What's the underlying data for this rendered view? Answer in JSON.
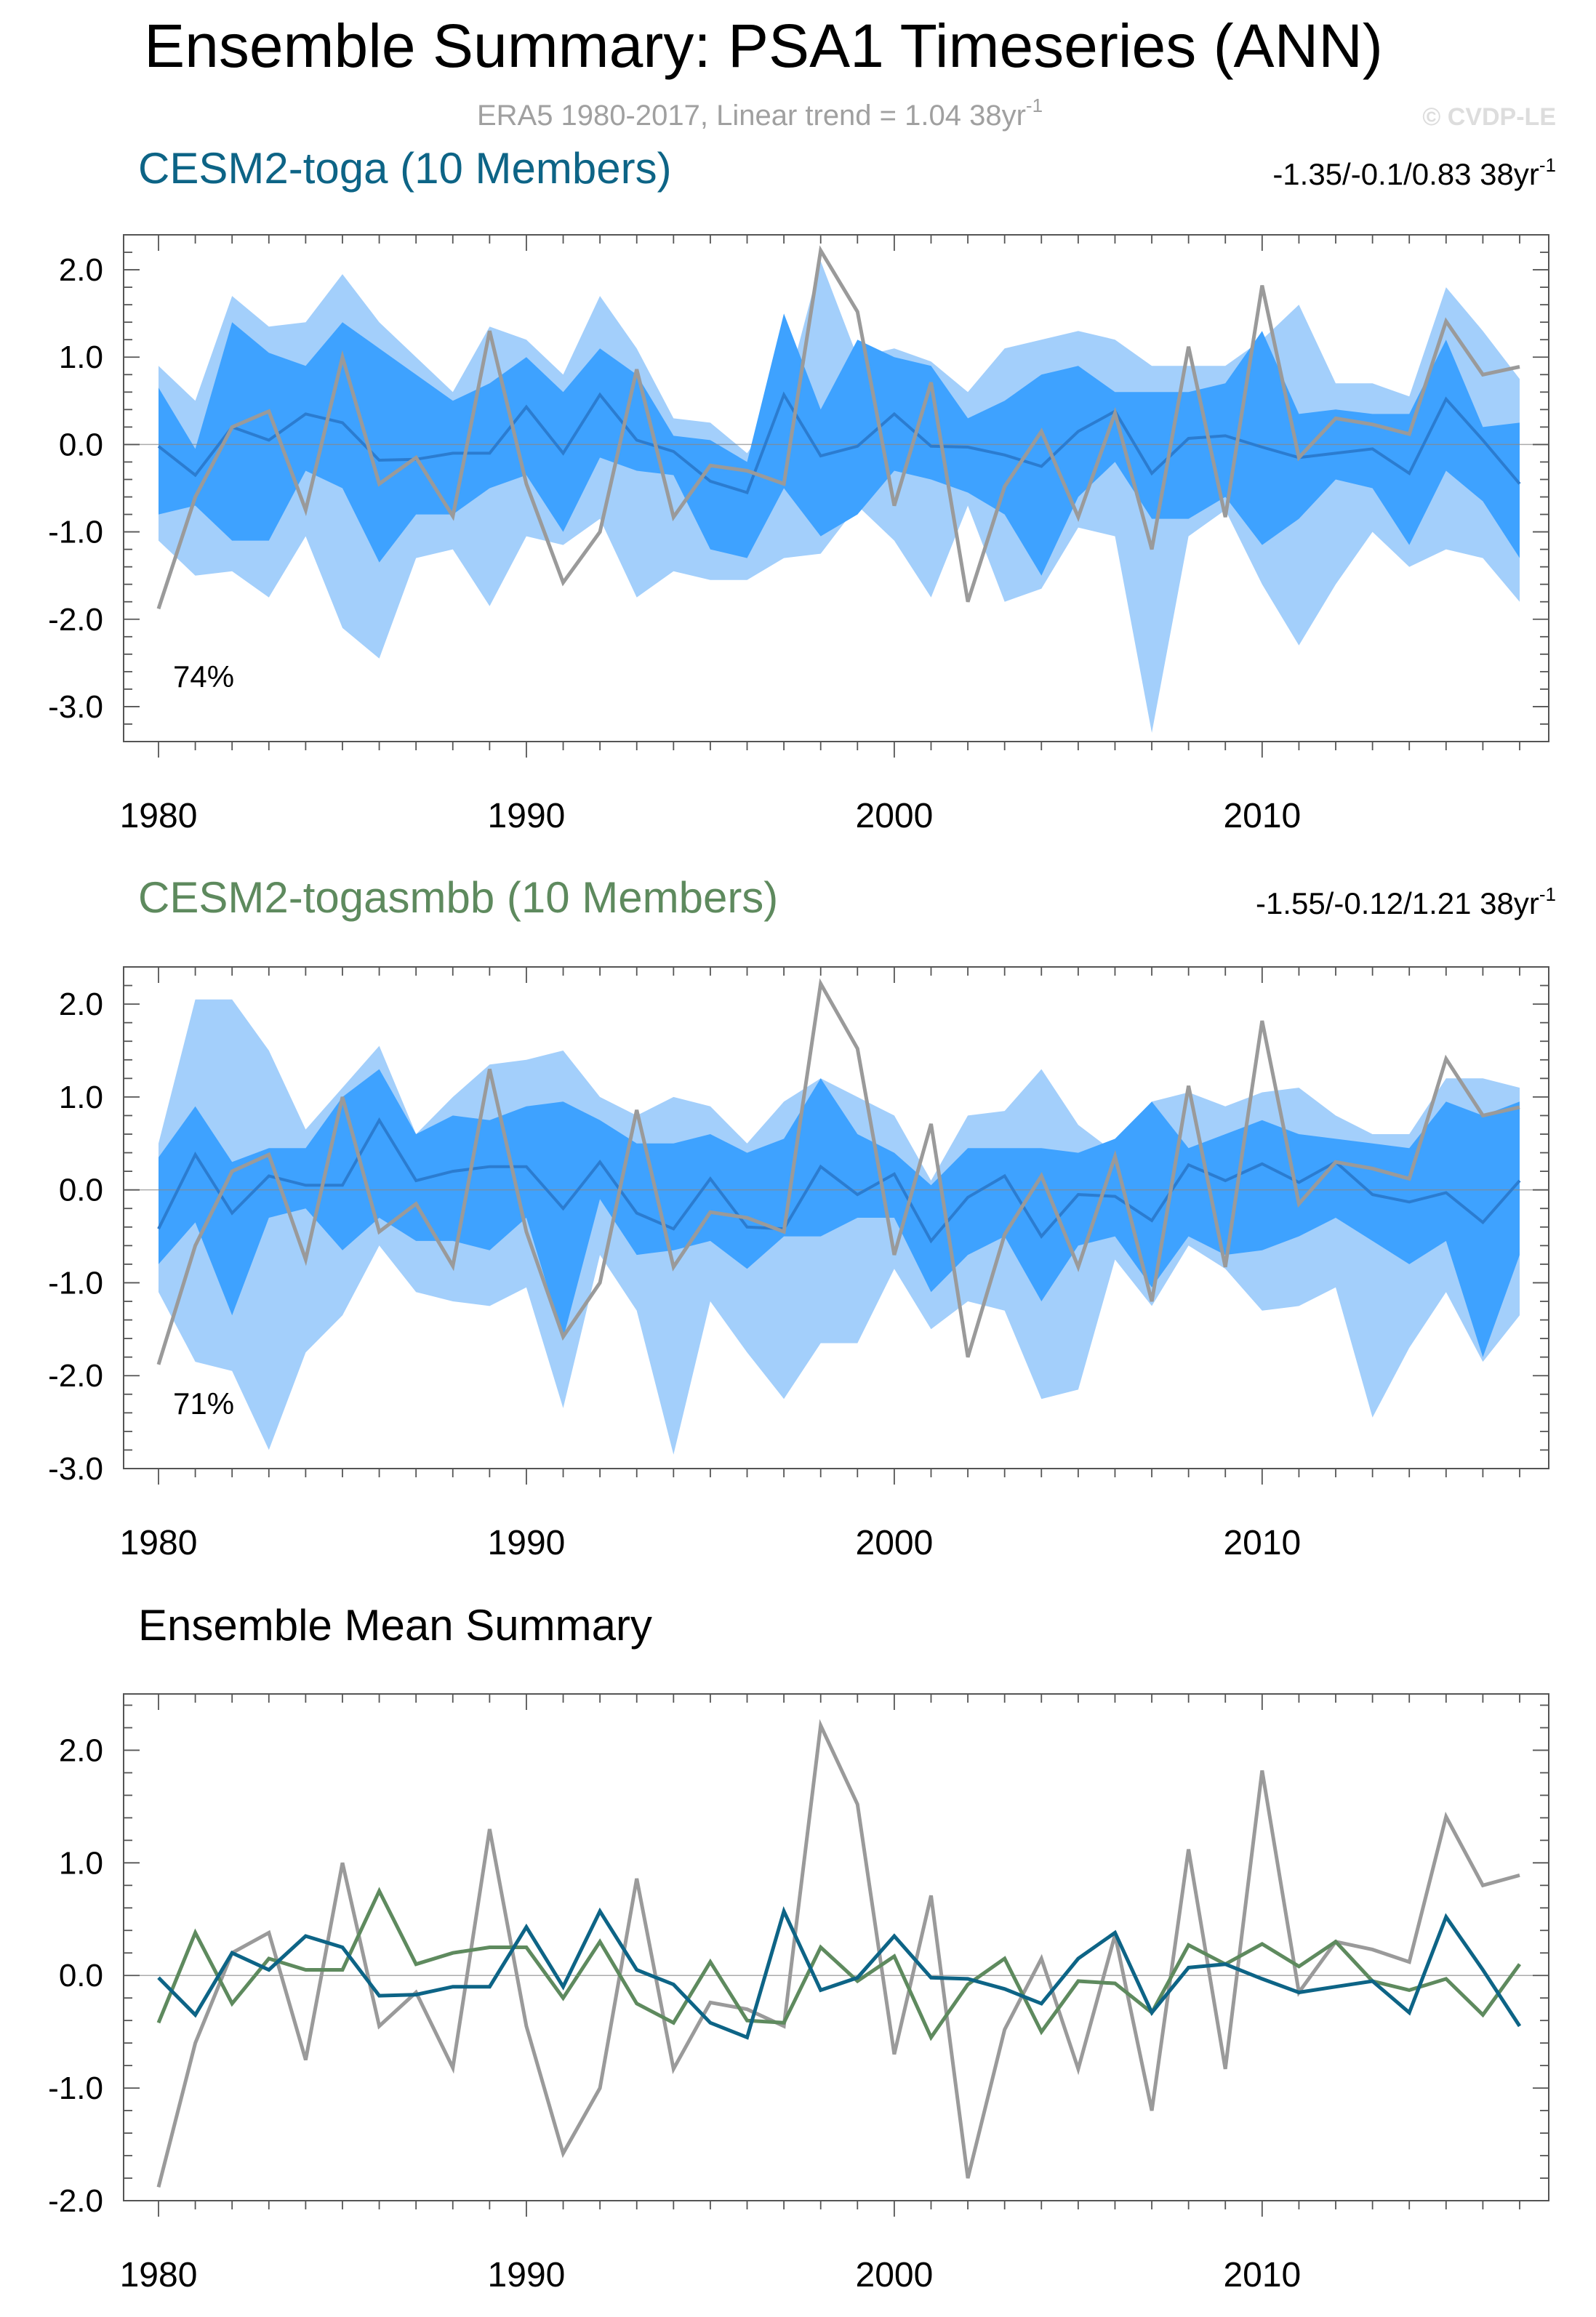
{
  "figure": {
    "title": "Ensemble Summary: PSA1 Timeseries (ANN)",
    "subtitle_main": "ERA5 1980-2017, Linear trend = 1.04 38yr",
    "subtitle_sup": "-1",
    "watermark": "© CVDP-LE"
  },
  "colors": {
    "band_outer": "#a3cffb",
    "band_inner": "#3ea2ff",
    "mean_blue": "#2b7cd0",
    "obs": "#9a9a9a",
    "toga": "#0d6486",
    "togasmbb": "#5e8a5e",
    "axis": "#555555"
  },
  "chart_data": [
    {
      "type": "area",
      "title": "CESM2-toga (10 Members)",
      "trend_label_main": "-1.35/-0.1/0.83 38yr",
      "trend_label_sup": "-1",
      "percent_label": "74%",
      "xlabel": "",
      "ylabel": "",
      "xlim": [
        1980,
        2017
      ],
      "ylim": [
        -3.4,
        2.4
      ],
      "xticks": [
        1980,
        1990,
        2000,
        2010
      ],
      "yticks": [
        2,
        1,
        0,
        -1,
        -2,
        -3
      ],
      "ytick_labels": [
        "2.0",
        "1.0",
        "0.0",
        "-1.0",
        "-2.0",
        "-3.0"
      ],
      "x": [
        1980,
        1981,
        1982,
        1983,
        1984,
        1985,
        1986,
        1987,
        1988,
        1989,
        1990,
        1991,
        1992,
        1993,
        1994,
        1995,
        1996,
        1997,
        1998,
        1999,
        2000,
        2001,
        2002,
        2003,
        2004,
        2005,
        2006,
        2007,
        2008,
        2009,
        2010,
        2011,
        2012,
        2013,
        2014,
        2015,
        2016,
        2017
      ],
      "outer_upper": [
        0.9,
        0.5,
        1.7,
        1.35,
        1.4,
        1.95,
        1.4,
        1.0,
        0.6,
        1.35,
        1.2,
        0.8,
        1.7,
        1.1,
        0.3,
        0.25,
        -0.1,
        0.5,
        2.1,
        1.0,
        1.1,
        0.95,
        0.6,
        1.1,
        1.2,
        1.3,
        1.2,
        0.9,
        0.9,
        0.9,
        1.2,
        1.6,
        0.7,
        0.7,
        0.55,
        1.8,
        1.3,
        0.75
      ],
      "outer_lower": [
        -1.1,
        -1.5,
        -1.45,
        -1.75,
        -1.05,
        -2.1,
        -2.45,
        -1.3,
        -1.2,
        -1.85,
        -1.05,
        -1.15,
        -0.85,
        -1.75,
        -1.45,
        -1.55,
        -1.55,
        -1.3,
        -1.25,
        -0.7,
        -1.1,
        -1.75,
        -0.7,
        -1.8,
        -1.65,
        -0.95,
        -1.05,
        -3.3,
        -1.05,
        -0.75,
        -1.6,
        -2.3,
        -1.6,
        -1.0,
        -1.4,
        -1.2,
        -1.3,
        -1.8
      ],
      "inner_upper": [
        0.65,
        -0.05,
        1.4,
        1.05,
        0.9,
        1.4,
        1.1,
        0.8,
        0.5,
        0.7,
        1.0,
        0.6,
        1.1,
        0.8,
        0.1,
        0.05,
        -0.2,
        1.5,
        0.4,
        1.2,
        1.0,
        0.9,
        0.3,
        0.5,
        0.8,
        0.9,
        0.6,
        0.6,
        0.6,
        0.7,
        1.3,
        0.35,
        0.4,
        0.35,
        0.35,
        1.2,
        0.2,
        0.25
      ],
      "inner_lower": [
        -0.8,
        -0.7,
        -1.1,
        -1.1,
        -0.3,
        -0.5,
        -1.35,
        -0.8,
        -0.8,
        -0.5,
        -0.35,
        -1.0,
        -0.15,
        -0.3,
        -0.35,
        -1.2,
        -1.3,
        -0.5,
        -1.05,
        -0.8,
        -0.3,
        -0.4,
        -0.55,
        -0.8,
        -1.5,
        -0.6,
        -0.2,
        -0.85,
        -0.85,
        -0.6,
        -1.15,
        -0.85,
        -0.4,
        -0.5,
        -1.15,
        -0.3,
        -0.65,
        -1.3
      ],
      "ens_mean": [
        -0.02,
        -0.35,
        0.2,
        0.05,
        0.35,
        0.25,
        -0.18,
        -0.17,
        -0.1,
        -0.1,
        0.43,
        -0.1,
        0.57,
        0.05,
        -0.08,
        -0.42,
        -0.55,
        0.57,
        -0.13,
        -0.02,
        0.35,
        -0.02,
        -0.03,
        -0.12,
        -0.25,
        0.15,
        0.38,
        -0.33,
        0.07,
        0.1,
        -0.03,
        -0.15,
        -0.1,
        -0.05,
        -0.33,
        0.52,
        0.05,
        -0.45
      ],
      "obs": [
        -1.88,
        -0.6,
        0.2,
        0.38,
        -0.75,
        1.0,
        -0.45,
        -0.15,
        -0.82,
        1.3,
        -0.45,
        -1.58,
        -1.0,
        0.86,
        -0.83,
        -0.24,
        -0.3,
        -0.45,
        2.22,
        1.52,
        -0.7,
        0.71,
        -1.8,
        -0.48,
        0.15,
        -0.83,
        0.36,
        -1.2,
        1.12,
        -0.83,
        1.82,
        -0.15,
        0.3,
        0.23,
        0.12,
        1.41,
        0.8,
        0.89
      ]
    },
    {
      "type": "area",
      "title": "CESM2-togasmbb (10 Members)",
      "trend_label_main": "-1.55/-0.12/1.21 38yr",
      "trend_label_sup": "-1",
      "percent_label": "71%",
      "xlabel": "",
      "ylabel": "",
      "xlim": [
        1980,
        2017
      ],
      "ylim": [
        -3.0,
        2.4
      ],
      "xticks": [
        1980,
        1990,
        2000,
        2010
      ],
      "yticks": [
        2,
        1,
        0,
        -1,
        -2,
        -3
      ],
      "ytick_labels": [
        "2.0",
        "1.0",
        "0.0",
        "-1.0",
        "-2.0",
        "-3.0"
      ],
      "x": [
        1980,
        1981,
        1982,
        1983,
        1984,
        1985,
        1986,
        1987,
        1988,
        1989,
        1990,
        1991,
        1992,
        1993,
        1994,
        1995,
        1996,
        1997,
        1998,
        1999,
        2000,
        2001,
        2002,
        2003,
        2004,
        2005,
        2006,
        2007,
        2008,
        2009,
        2010,
        2011,
        2012,
        2013,
        2014,
        2015,
        2016,
        2017
      ],
      "outer_upper": [
        0.5,
        2.05,
        2.05,
        1.5,
        0.65,
        1.1,
        1.55,
        0.6,
        1.0,
        1.35,
        1.4,
        1.5,
        1.0,
        0.8,
        1.0,
        0.9,
        0.5,
        0.95,
        1.2,
        1.0,
        0.8,
        0.1,
        0.8,
        0.85,
        1.3,
        0.7,
        0.4,
        0.95,
        1.05,
        0.9,
        1.05,
        1.1,
        0.8,
        0.6,
        0.6,
        1.2,
        1.2,
        1.1
      ],
      "outer_lower": [
        -1.1,
        -1.85,
        -1.95,
        -2.8,
        -1.75,
        -1.35,
        -0.6,
        -1.1,
        -1.2,
        -1.25,
        -1.05,
        -2.35,
        -0.7,
        -1.3,
        -2.85,
        -1.2,
        -1.75,
        -2.25,
        -1.65,
        -1.65,
        -0.85,
        -1.5,
        -1.2,
        -1.3,
        -2.25,
        -2.15,
        -0.75,
        -1.25,
        -0.6,
        -0.85,
        -1.3,
        -1.25,
        -1.05,
        -2.45,
        -1.7,
        -1.1,
        -1.85,
        -1.35
      ],
      "inner_upper": [
        0.35,
        0.9,
        0.3,
        0.45,
        0.45,
        1.0,
        1.3,
        0.6,
        0.8,
        0.75,
        0.9,
        0.95,
        0.75,
        0.5,
        0.5,
        0.6,
        0.4,
        0.55,
        1.2,
        0.6,
        0.4,
        0.05,
        0.45,
        0.45,
        0.45,
        0.4,
        0.55,
        0.95,
        0.45,
        0.6,
        0.75,
        0.6,
        0.55,
        0.5,
        0.45,
        0.95,
        0.8,
        0.95
      ],
      "inner_lower": [
        -0.8,
        -0.35,
        -1.35,
        -0.3,
        -0.2,
        -0.65,
        -0.3,
        -0.55,
        -0.55,
        -0.65,
        -0.3,
        -1.6,
        -0.1,
        -0.7,
        -0.65,
        -0.55,
        -0.85,
        -0.5,
        -0.5,
        -0.3,
        -0.3,
        -1.1,
        -0.7,
        -0.5,
        -1.2,
        -0.6,
        -0.5,
        -1.05,
        -0.5,
        -0.7,
        -0.65,
        -0.5,
        -0.3,
        -0.55,
        -0.8,
        -0.55,
        -1.8,
        -0.7
      ],
      "ens_mean": [
        -0.42,
        0.38,
        -0.25,
        0.15,
        0.05,
        0.05,
        0.75,
        0.1,
        0.2,
        0.25,
        0.25,
        -0.2,
        0.3,
        -0.25,
        -0.42,
        0.12,
        -0.4,
        -0.42,
        0.25,
        -0.05,
        0.17,
        -0.55,
        -0.08,
        0.15,
        -0.5,
        -0.05,
        -0.07,
        -0.33,
        0.27,
        0.1,
        0.28,
        0.08,
        0.3,
        -0.05,
        -0.13,
        -0.03,
        -0.35,
        0.1
      ],
      "obs": [
        -1.88,
        -0.6,
        0.2,
        0.38,
        -0.75,
        1.0,
        -0.45,
        -0.15,
        -0.82,
        1.3,
        -0.45,
        -1.58,
        -1.0,
        0.86,
        -0.83,
        -0.24,
        -0.3,
        -0.45,
        2.22,
        1.52,
        -0.7,
        0.71,
        -1.8,
        -0.48,
        0.15,
        -0.83,
        0.36,
        -1.2,
        1.12,
        -0.83,
        1.82,
        -0.15,
        0.3,
        0.23,
        0.12,
        1.41,
        0.8,
        0.89
      ]
    },
    {
      "type": "line",
      "title": "Ensemble Mean Summary",
      "xlabel": "",
      "ylabel": "",
      "xlim": [
        1980,
        2017
      ],
      "ylim": [
        -2.0,
        2.5
      ],
      "xticks": [
        1980,
        1990,
        2000,
        2010
      ],
      "yticks": [
        2,
        1,
        0,
        -1,
        -2
      ],
      "ytick_labels": [
        "2.0",
        "1.0",
        "0.0",
        "-1.0",
        "-2.0"
      ],
      "x": [
        1980,
        1981,
        1982,
        1983,
        1984,
        1985,
        1986,
        1987,
        1988,
        1989,
        1990,
        1991,
        1992,
        1993,
        1994,
        1995,
        1996,
        1997,
        1998,
        1999,
        2000,
        2001,
        2002,
        2003,
        2004,
        2005,
        2006,
        2007,
        2008,
        2009,
        2010,
        2011,
        2012,
        2013,
        2014,
        2015,
        2016,
        2017
      ],
      "series": [
        {
          "name": "ERA5",
          "color_key": "obs",
          "values": [
            -1.88,
            -0.6,
            0.2,
            0.38,
            -0.75,
            1.0,
            -0.45,
            -0.15,
            -0.82,
            1.3,
            -0.45,
            -1.58,
            -1.0,
            0.86,
            -0.83,
            -0.24,
            -0.3,
            -0.45,
            2.22,
            1.52,
            -0.7,
            0.71,
            -1.8,
            -0.48,
            0.15,
            -0.83,
            0.36,
            -1.2,
            1.12,
            -0.83,
            1.82,
            -0.15,
            0.3,
            0.23,
            0.12,
            1.41,
            0.8,
            0.89
          ]
        },
        {
          "name": "CESM2-togasmbb",
          "color_key": "togasmbb",
          "values": [
            -0.42,
            0.38,
            -0.25,
            0.15,
            0.05,
            0.05,
            0.75,
            0.1,
            0.2,
            0.25,
            0.25,
            -0.2,
            0.3,
            -0.25,
            -0.42,
            0.12,
            -0.4,
            -0.42,
            0.25,
            -0.05,
            0.17,
            -0.55,
            -0.08,
            0.15,
            -0.5,
            -0.05,
            -0.07,
            -0.33,
            0.27,
            0.1,
            0.28,
            0.08,
            0.3,
            -0.05,
            -0.13,
            -0.03,
            -0.35,
            0.1
          ]
        },
        {
          "name": "CESM2-toga",
          "color_key": "toga",
          "values": [
            -0.02,
            -0.35,
            0.2,
            0.05,
            0.35,
            0.25,
            -0.18,
            -0.17,
            -0.1,
            -0.1,
            0.43,
            -0.1,
            0.57,
            0.05,
            -0.08,
            -0.42,
            -0.55,
            0.57,
            -0.13,
            -0.02,
            0.35,
            -0.02,
            -0.03,
            -0.12,
            -0.25,
            0.15,
            0.38,
            -0.33,
            0.07,
            0.1,
            -0.03,
            -0.15,
            -0.1,
            -0.05,
            -0.33,
            0.52,
            0.05,
            -0.45
          ]
        }
      ]
    }
  ]
}
